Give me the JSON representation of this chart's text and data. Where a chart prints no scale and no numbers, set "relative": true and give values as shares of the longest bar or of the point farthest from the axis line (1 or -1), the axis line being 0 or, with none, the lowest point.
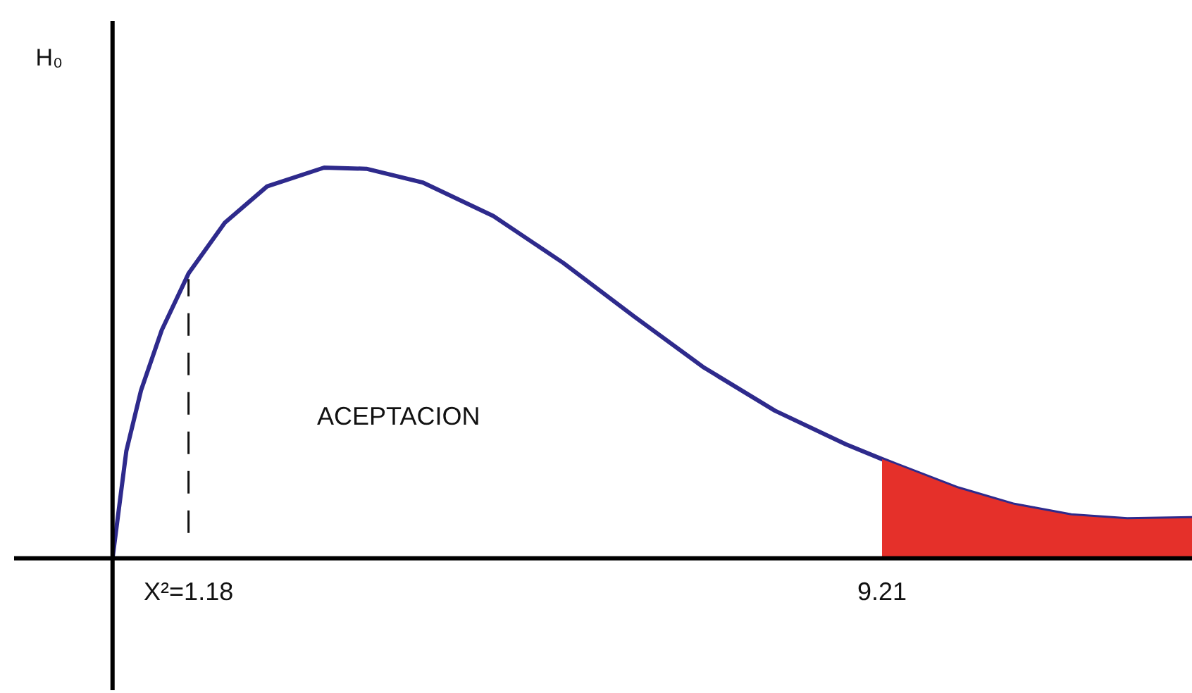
{
  "chart_data": {
    "type": "line",
    "relative": true,
    "ylabel": "H₀",
    "xlim": [
      -0.84,
      12.8
    ],
    "xticks": [
      {
        "value": 1.18,
        "label": "X²=1.18"
      },
      {
        "value": 9.21,
        "label": "9.21"
      }
    ],
    "tick_labels": "x",
    "marker": "none",
    "line_style": "solid",
    "x": [
      0.3,
      0.46,
      0.63,
      0.87,
      1.18,
      1.6,
      2.09,
      2.75,
      3.24,
      3.89,
      4.71,
      5.52,
      6.34,
      7.15,
      7.97,
      8.79,
      9.21,
      10.09,
      10.74,
      11.4,
      12.05,
      12.8
    ],
    "series": [
      {
        "type": "area",
        "color": "#e5302a",
        "x": [
          9.21,
          10.09,
          10.74,
          11.4,
          12.05,
          12.8
        ],
        "values": [
          0.254,
          0.179,
          0.137,
          0.11,
          0.1,
          0.103
        ]
      },
      {
        "color": "#2e2a8c",
        "values": [
          0,
          0.275,
          0.43,
          0.584,
          0.729,
          0.859,
          0.952,
          1.0,
          0.997,
          0.962,
          0.876,
          0.756,
          0.619,
          0.488,
          0.378,
          0.292,
          0.254,
          0.179,
          0.137,
          0.11,
          0.1,
          0.103
        ]
      }
    ],
    "ref_lines": [
      {
        "axis": "x",
        "value": 0.3,
        "line_style": "solid",
        "color": "#000000"
      },
      {
        "axis": "x",
        "value": 1.18,
        "line_style": "dashed",
        "color": "#111111"
      }
    ],
    "annotations": [
      "ACEPTACION"
    ]
  }
}
